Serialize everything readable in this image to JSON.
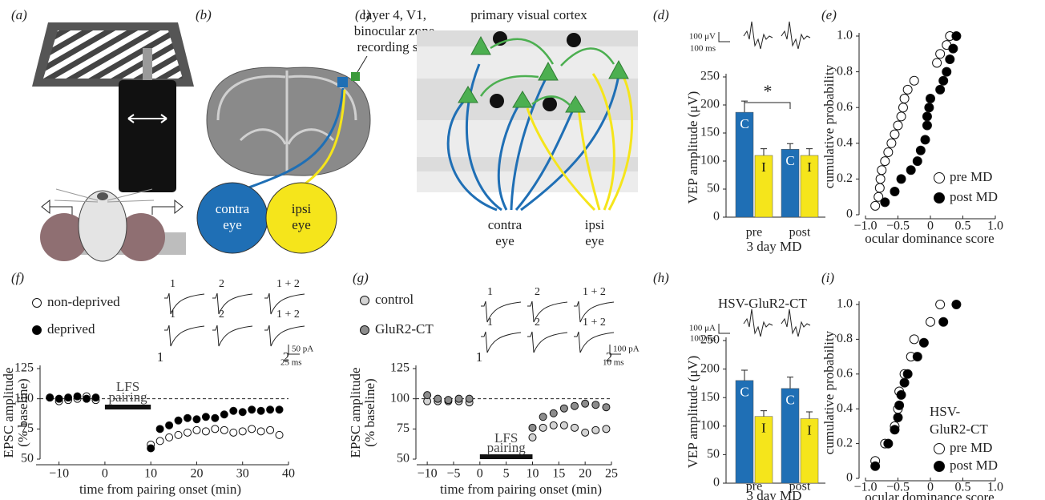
{
  "panels": {
    "a": {
      "label": "(a)"
    },
    "b": {
      "label": "(b)",
      "site_label": [
        "layer 4, V1,",
        "binocular zone",
        "recording site"
      ],
      "contra": [
        "contra",
        "eye"
      ],
      "ipsi": [
        "ipsi",
        "eye"
      ]
    },
    "c": {
      "label": "(c)",
      "title": "primary visual cortex",
      "contra": [
        "contra",
        "eye"
      ],
      "ipsi": [
        "ipsi",
        "eye"
      ]
    }
  },
  "chart_data": [
    {
      "type": "bar",
      "panel_label": "(d)",
      "ylabel": "VEP amplitude (μV)",
      "xlabel": "3 day MD",
      "categories": [
        "pre",
        "post"
      ],
      "series": [
        {
          "name": "C",
          "color": "#1f6fb5",
          "values": [
            187,
            121
          ],
          "errors": [
            20,
            10
          ]
        },
        {
          "name": "I",
          "color": "#f5e51b",
          "values": [
            110,
            110
          ],
          "errors": [
            12,
            12
          ]
        }
      ],
      "ylim": [
        0,
        250
      ],
      "yticks": [
        0,
        50,
        100,
        150,
        200,
        250
      ],
      "annotation": "*",
      "scale_bar": [
        "100 μV",
        "100 ms"
      ]
    },
    {
      "type": "scatter",
      "panel_label": "(e)",
      "ylabel": "cumulative probability",
      "xlabel": "ocular dominance score",
      "xlim": [
        -1,
        1
      ],
      "ylim": [
        0,
        1
      ],
      "xticks": [
        {
          "value": -1,
          "label": "−1.0"
        },
        {
          "value": -0.5,
          "label": "−0.5"
        },
        0,
        0.5,
        {
          "value": 1,
          "label": "1.0"
        }
      ],
      "yticks": [
        0,
        0.2,
        0.4,
        0.6,
        0.8,
        {
          "value": 1,
          "label": "1.0"
        }
      ],
      "legend": "lower right",
      "series": [
        {
          "name": "pre MD",
          "color": "#ffffff",
          "x": [
            -0.85,
            -0.8,
            -0.78,
            -0.77,
            -0.75,
            -0.7,
            -0.65,
            -0.6,
            -0.55,
            -0.5,
            -0.45,
            -0.42,
            -0.4,
            -0.35,
            -0.25,
            0.1,
            0.15,
            0.25,
            0.3
          ],
          "values": [
            0.05,
            0.1,
            0.15,
            0.2,
            0.25,
            0.3,
            0.35,
            0.4,
            0.45,
            0.5,
            0.55,
            0.6,
            0.65,
            0.7,
            0.75,
            0.85,
            0.9,
            0.95,
            1.0
          ]
        },
        {
          "name": "post MD",
          "color": "#000000",
          "x": [
            -0.7,
            -0.55,
            -0.45,
            -0.3,
            -0.2,
            -0.15,
            -0.08,
            -0.05,
            -0.05,
            -0.02,
            0.0,
            0.15,
            0.2,
            0.25,
            0.3,
            0.35,
            0.4
          ],
          "values": [
            0.07,
            0.13,
            0.2,
            0.25,
            0.3,
            0.36,
            0.42,
            0.5,
            0.55,
            0.6,
            0.65,
            0.7,
            0.75,
            0.8,
            0.87,
            0.93,
            1.0
          ]
        }
      ]
    },
    {
      "type": "scatter",
      "panel_label": "(f)",
      "ylabel": [
        "EPSC amplitude",
        "(% baseline)"
      ],
      "xlabel": "time from pairing onset (min)",
      "xlim": [
        -15,
        40
      ],
      "ylim": [
        50,
        125
      ],
      "xticks": [
        {
          "value": -10,
          "label": "−10"
        },
        0,
        10,
        20,
        30,
        40
      ],
      "yticks": [
        50,
        75,
        100,
        125
      ],
      "reference_line": 100,
      "pairing_interval": [
        0,
        10
      ],
      "pairing_label": [
        "LFS",
        "pairing"
      ],
      "time_points": [
        "1",
        "2"
      ],
      "trace_labels": [
        "1",
        "2",
        "1 + 2"
      ],
      "scale_bar": [
        "50 pA",
        "25 ms"
      ],
      "legend": "upper left",
      "x": [
        -12,
        -10,
        -8,
        -6,
        -4,
        -2,
        10,
        12,
        14,
        16,
        18,
        20,
        22,
        24,
        26,
        28,
        30,
        32,
        34,
        36,
        38
      ],
      "series": [
        {
          "name": "non-deprived",
          "color": "#ffffff",
          "values": [
            101,
            98,
            99,
            100,
            102,
            99,
            62,
            65,
            68,
            70,
            72,
            74,
            73,
            75,
            74,
            72,
            73,
            75,
            73,
            74,
            70
          ]
        },
        {
          "name": "deprived",
          "color": "#000000",
          "values": [
            101,
            100,
            101,
            102,
            100,
            101,
            59,
            75,
            78,
            82,
            84,
            83,
            85,
            84,
            87,
            90,
            89,
            91,
            90,
            91,
            91
          ]
        }
      ]
    },
    {
      "type": "scatter",
      "panel_label": "(g)",
      "ylabel": [
        "EPSC amplitude",
        "(% baseline)"
      ],
      "xlabel": "time from pairing onset (min)",
      "xlim": [
        -12,
        25
      ],
      "ylim": [
        50,
        125
      ],
      "xticks": [
        {
          "value": -10,
          "label": "−10"
        },
        {
          "value": -5,
          "label": "−5"
        },
        0,
        5,
        10,
        15,
        20,
        25
      ],
      "yticks": [
        50,
        75,
        100,
        125
      ],
      "reference_line": 100,
      "pairing_interval": [
        0,
        10
      ],
      "pairing_label": [
        "LFS",
        "pairing"
      ],
      "time_points": [
        "1",
        "2"
      ],
      "trace_labels": [
        "1",
        "2",
        "1 + 2"
      ],
      "scale_bar": [
        "100 pA",
        "10 ms"
      ],
      "legend": "upper left",
      "x": [
        -10,
        -8,
        -6,
        -4,
        -2,
        10,
        12,
        14,
        16,
        18,
        20,
        22,
        24
      ],
      "series": [
        {
          "name": "control",
          "color": "#d4d4d4",
          "values": [
            98,
            98,
            98,
            98,
            97,
            68,
            76,
            78,
            78,
            76,
            72,
            74,
            75
          ]
        },
        {
          "name": "GluR2-CT",
          "color": "#8c8c8c",
          "values": [
            103,
            100,
            99,
            100,
            100,
            76,
            85,
            88,
            92,
            94,
            96,
            95,
            93
          ]
        }
      ]
    },
    {
      "type": "bar",
      "panel_label": "(h)",
      "title": "HSV-GluR2-CT",
      "ylabel": "VEP amplitude (μV)",
      "xlabel": "3 day MD",
      "categories": [
        "pre",
        "post"
      ],
      "series": [
        {
          "name": "C",
          "color": "#1f6fb5",
          "values": [
            180,
            166
          ],
          "errors": [
            18,
            20
          ]
        },
        {
          "name": "I",
          "color": "#f5e51b",
          "values": [
            117,
            113
          ],
          "errors": [
            10,
            12
          ]
        }
      ],
      "ylim": [
        0,
        250
      ],
      "yticks": [
        0,
        50,
        100,
        150,
        200,
        250
      ],
      "scale_bar": [
        "100 μA",
        "100 ms"
      ]
    },
    {
      "type": "scatter",
      "panel_label": "(i)",
      "ylabel": "cumulative probability",
      "xlabel": "ocular dominance score",
      "xlim": [
        -1,
        1
      ],
      "ylim": [
        0,
        1
      ],
      "xticks": [
        {
          "value": -1,
          "label": "−1.0"
        },
        {
          "value": -0.5,
          "label": "−0.5"
        },
        0,
        0.5,
        {
          "value": 1,
          "label": "1.0"
        }
      ],
      "yticks": [
        0,
        0.2,
        0.4,
        0.6,
        0.8,
        {
          "value": 1,
          "label": "1.0"
        }
      ],
      "legend": "lower right",
      "legend_title": [
        "HSV-",
        "GluR2-CT"
      ],
      "series": [
        {
          "name": "pre MD",
          "color": "#ffffff",
          "x": [
            -0.85,
            -0.7,
            -0.55,
            -0.5,
            -0.48,
            -0.4,
            -0.3,
            -0.25,
            0.0,
            0.15
          ],
          "values": [
            0.1,
            0.2,
            0.3,
            0.4,
            0.5,
            0.6,
            0.7,
            0.8,
            0.9,
            1.0
          ]
        },
        {
          "name": "post MD",
          "color": "#000000",
          "x": [
            -0.85,
            -0.65,
            -0.55,
            -0.5,
            -0.48,
            -0.45,
            -0.4,
            -0.35,
            -0.2,
            -0.1,
            0.2,
            0.4
          ],
          "values": [
            0.07,
            0.2,
            0.28,
            0.35,
            0.42,
            0.48,
            0.55,
            0.6,
            0.7,
            0.78,
            0.9,
            1.0
          ]
        }
      ]
    }
  ]
}
